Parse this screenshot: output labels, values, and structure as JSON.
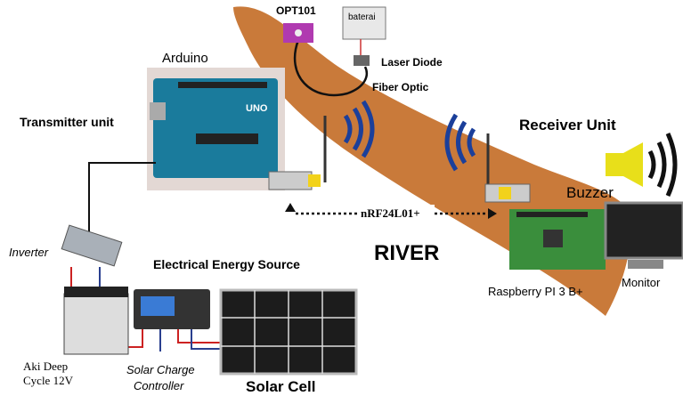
{
  "labels": {
    "opt101": "OPT101",
    "baterai": "baterai",
    "laser_diode": "Laser Diode",
    "fiber_optic": "Fiber Optic",
    "arduino": "Arduino",
    "uno": "UNO",
    "transmitter_unit": "Transmitter unit",
    "receiver_unit": "Receiver Unit",
    "buzzer": "Buzzer",
    "radio": "nRF24L01+",
    "river": "RIVER",
    "inverter": "Inverter",
    "energy_source": "Electrical Energy Source",
    "raspberry": "Raspberry PI 3 B+",
    "monitor": "Monitor",
    "battery": [
      "Aki Deep",
      "Cycle 12V"
    ],
    "charge_controller": [
      "Solar Charge",
      "Controller"
    ],
    "solar_cell": "Solar Cell"
  }
}
